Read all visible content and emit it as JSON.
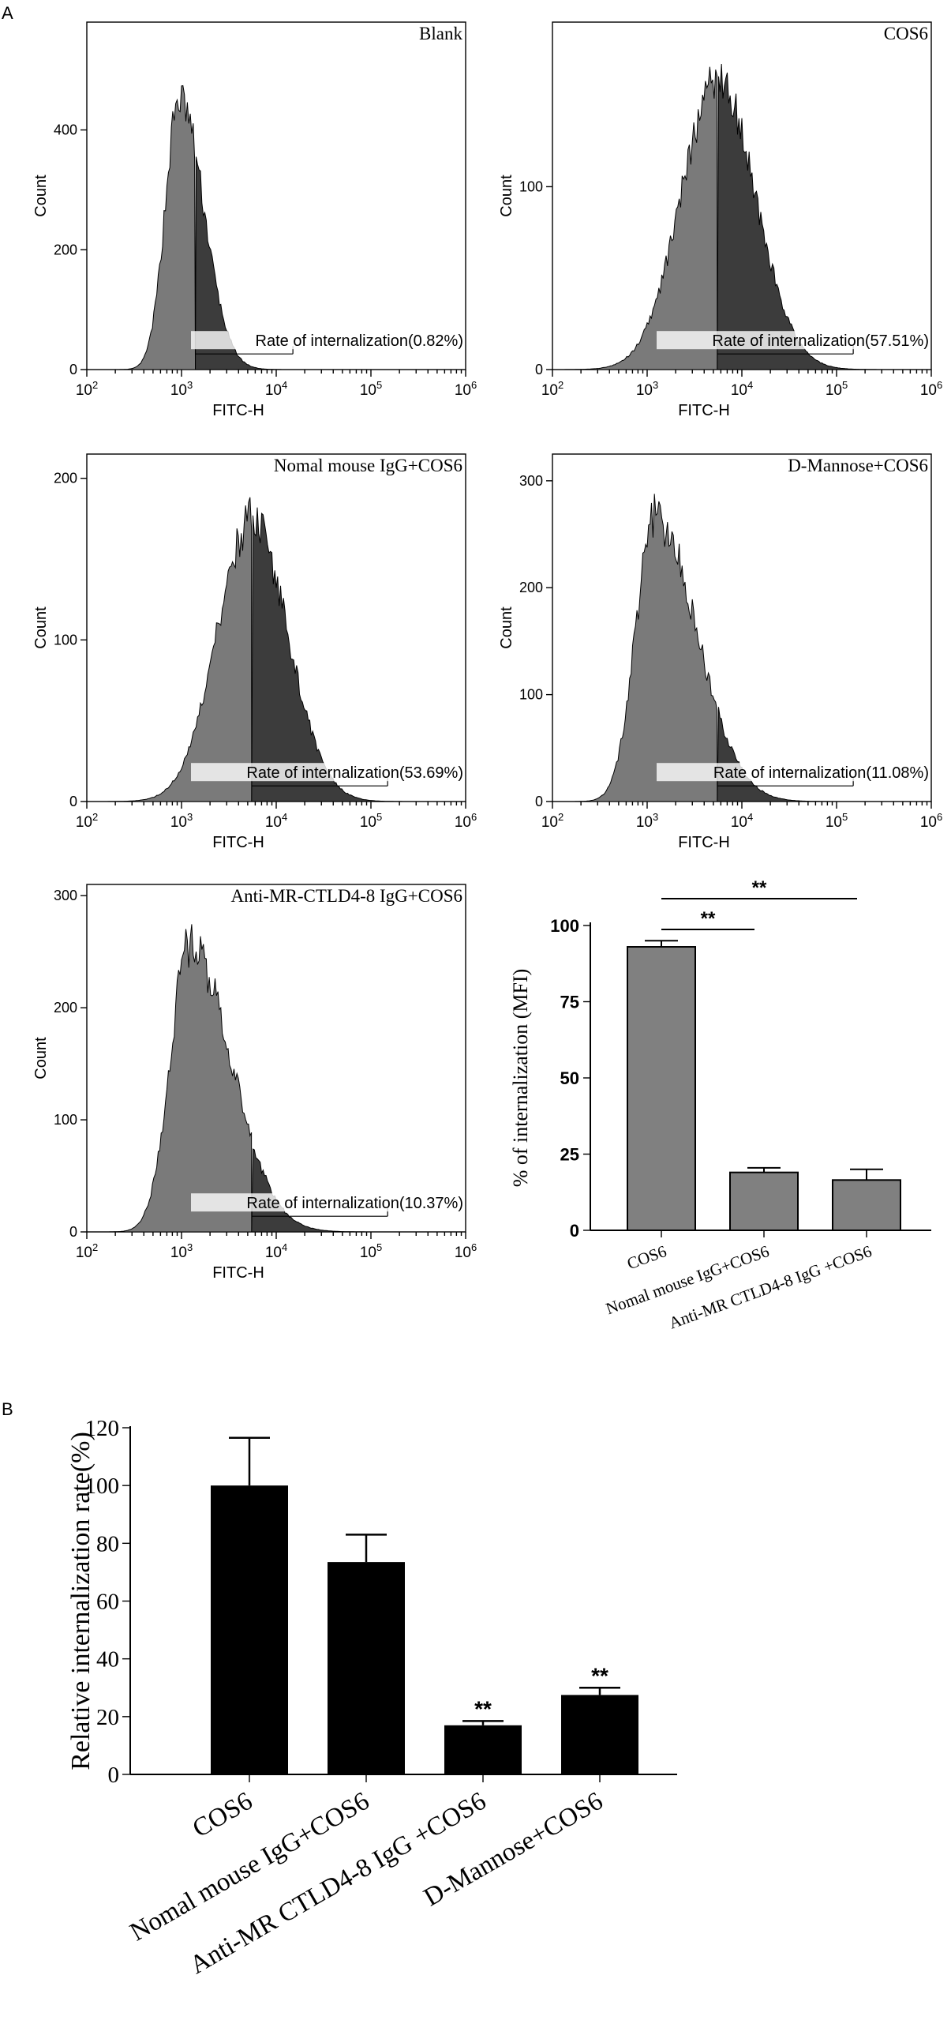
{
  "figure": {
    "panel_a_label": "A",
    "panel_b_label": "B"
  },
  "colors": {
    "hist_light": "#7a7a7a",
    "hist_dark": "#3c3c3c",
    "bar_gray": "#808080",
    "bar_black": "#000000"
  },
  "chart_data": [
    {
      "type": "area",
      "title": "Blank",
      "xlabel": "FITC-H",
      "ylabel": "Count",
      "x_scale": "log10",
      "xlim": [
        100,
        1000000
      ],
      "x_ticks": [
        100,
        1000,
        10000,
        100000,
        1000000
      ],
      "ylim": [
        0,
        580
      ],
      "y_ticks": [
        0,
        200,
        400
      ],
      "peak_fitc": 950,
      "peak_count": 460,
      "width_decades": 0.15,
      "right_tail": 1.7,
      "gate_fitc": [
        1400,
        15000
      ],
      "gate_annotation": "Rate of internalization(0.82%)",
      "rate_percent": 0.82
    },
    {
      "type": "area",
      "title": "COS6",
      "xlabel": "FITC-H",
      "ylabel": "Count",
      "x_scale": "log10",
      "xlim": [
        100,
        1000000
      ],
      "x_ticks": [
        100,
        1000,
        10000,
        100000,
        1000000
      ],
      "ylim": [
        0,
        190
      ],
      "y_ticks": [
        0,
        100
      ],
      "peak_fitc": 5500,
      "peak_count": 162,
      "width_decades": 0.38,
      "right_tail": 1.05,
      "gate_fitc": [
        5500,
        150000
      ],
      "gate_annotation": "Rate of internalization(57.51%)",
      "rate_percent": 57.51
    },
    {
      "type": "area",
      "title": "Nomal mouse IgG+COS6",
      "xlabel": "FITC-H",
      "ylabel": "Count",
      "x_scale": "log10",
      "xlim": [
        100,
        1000000
      ],
      "x_ticks": [
        100,
        1000,
        10000,
        100000,
        1000000
      ],
      "ylim": [
        0,
        215
      ],
      "y_ticks": [
        0,
        100,
        200
      ],
      "peak_fitc": 5500,
      "peak_count": 178,
      "width_decades": 0.36,
      "right_tail": 1.05,
      "gate_fitc": [
        5500,
        150000
      ],
      "gate_annotation": "Rate of internalization(53.69%)",
      "rate_percent": 53.69
    },
    {
      "type": "area",
      "title": "D-Mannose+COS6",
      "xlabel": "FITC-H",
      "ylabel": "Count",
      "x_scale": "log10",
      "xlim": [
        100,
        1000000
      ],
      "x_ticks": [
        100,
        1000,
        10000,
        100000,
        1000000
      ],
      "ylim": [
        0,
        325
      ],
      "y_ticks": [
        0,
        100,
        200,
        300
      ],
      "peak_fitc": 1200,
      "peak_count": 272,
      "width_decades": 0.2,
      "right_tail": 2.2,
      "gate_fitc": [
        5500,
        150000
      ],
      "gate_annotation": "Rate of internalization(11.08%)",
      "rate_percent": 11.08
    },
    {
      "type": "area",
      "title": "Anti-MR-CTLD4-8 IgG+COS6",
      "xlabel": "FITC-H",
      "ylabel": "Count",
      "x_scale": "log10",
      "xlim": [
        100,
        1000000
      ],
      "x_ticks": [
        100,
        1000,
        10000,
        100000,
        1000000
      ],
      "ylim": [
        0,
        310
      ],
      "y_ticks": [
        0,
        100,
        200,
        300
      ],
      "peak_fitc": 1200,
      "peak_count": 262,
      "width_decades": 0.2,
      "right_tail": 2.2,
      "gate_fitc": [
        5500,
        150000
      ],
      "gate_annotation": "Rate of internalization(10.37%)",
      "rate_percent": 10.37
    },
    {
      "type": "bar",
      "title": "",
      "categories": [
        "COS6",
        "Nomal mouse IgG+COS6",
        "Anti-MR CTLD4-8 IgG +COS6"
      ],
      "values": [
        93,
        19,
        16.5
      ],
      "errors": [
        2,
        1.5,
        3.5
      ],
      "ylabel": "% of  internalization (MFI)",
      "xlabel": "",
      "ylim": [
        0,
        100
      ],
      "y_ticks": [
        0,
        25,
        50,
        75,
        100
      ],
      "significance": [
        {
          "from": 0,
          "to": 1,
          "label": "**"
        },
        {
          "from": 0,
          "to": 2,
          "label": "**"
        }
      ]
    },
    {
      "type": "bar",
      "title": "",
      "categories": [
        "COS6",
        "Nomal mouse IgG+COS6",
        "Anti-MR CTLD4-8 IgG +COS6",
        "D-Mannose+COS6"
      ],
      "values": [
        100,
        73.5,
        17,
        27.5
      ],
      "errors": [
        16.5,
        9.5,
        1.5,
        2.5
      ],
      "ylabel": "Relative internalization rate(%)",
      "xlabel": "",
      "ylim": [
        0,
        120
      ],
      "y_ticks": [
        0,
        20,
        40,
        60,
        80,
        100,
        120
      ],
      "annotations": [
        "",
        "",
        "**",
        "**"
      ]
    }
  ]
}
